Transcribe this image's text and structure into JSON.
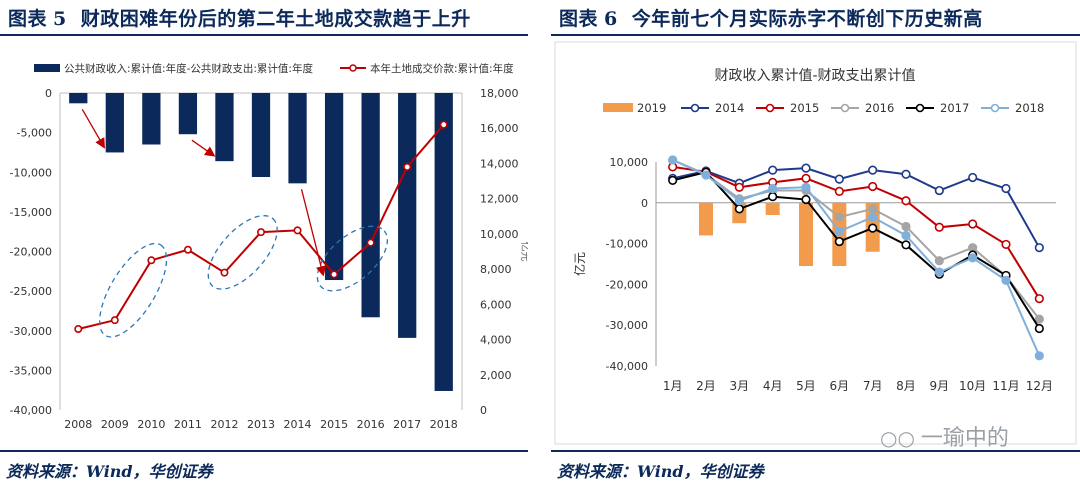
{
  "colors": {
    "navy": "#0b2a5b",
    "land_line": "#c00000",
    "annotation": "#2e75b6",
    "orange_bar": "#f39b4c",
    "s2014": "#1f3a8a",
    "s2015": "#c00000",
    "s2016": "#a5a5a5",
    "s2017": "#000000",
    "s2018": "#7fb0dc"
  },
  "left": {
    "figure_label": "图表",
    "figure_number": "5",
    "title": "财政困难年份后的第二年土地成交款趋于上升",
    "source": "资料来源：Wind，华创证券"
  },
  "right": {
    "figure_label": "图表",
    "figure_number": "6",
    "title": "今年前七个月实际赤字不断创下历史新高",
    "source": "资料来源：Wind，华创证券",
    "watermark": "一瑜中的",
    "watermark_icon": "wechat-icon"
  },
  "chart_data": [
    {
      "type": "bar+line",
      "title": "",
      "categories": [
        "2008",
        "2009",
        "2010",
        "2011",
        "2012",
        "2013",
        "2014",
        "2015",
        "2016",
        "2017",
        "2018"
      ],
      "series": [
        {
          "name": "公共财政收入:累计值:年度-公共财政支出:累计值:年度",
          "kind": "bar",
          "axis": "left",
          "values": [
            -1300,
            -7500,
            -6500,
            -5200,
            -8600,
            -10600,
            -11400,
            -23600,
            -28300,
            -30900,
            -37600
          ]
        },
        {
          "name": "本年土地成交价款:累计值:年度",
          "kind": "line",
          "axis": "right",
          "values": [
            4600,
            5100,
            8500,
            9100,
            7800,
            10100,
            10200,
            7700,
            9500,
            13800,
            16200
          ]
        }
      ],
      "y_left": {
        "min": -40000,
        "max": 0,
        "step": 5000,
        "ticks": [
          "0",
          "-5,000",
          "-10,000",
          "-15,000",
          "-20,000",
          "-25,000",
          "-30,000",
          "-35,000",
          "-40,000"
        ]
      },
      "y_right": {
        "min": 0,
        "max": 18000,
        "step": 2000,
        "label": "亿元",
        "ticks": [
          "0",
          "2,000",
          "4,000",
          "6,000",
          "8,000",
          "10,000",
          "12,000",
          "14,000",
          "16,000",
          "18,000"
        ]
      },
      "annotations": {
        "ellipses_around": [
          [
            "2009",
            "2010"
          ],
          [
            "2012",
            "2013"
          ],
          [
            "2015",
            "2016"
          ]
        ],
        "arrows_from_to": [
          [
            "2008",
            "2009"
          ],
          [
            "2011",
            "2012"
          ],
          [
            "2014",
            "2015"
          ]
        ]
      },
      "legend_position": "top"
    },
    {
      "type": "line+bar",
      "title": "财政收入累计值-财政支出累计值",
      "categories": [
        "1月",
        "2月",
        "3月",
        "4月",
        "5月",
        "6月",
        "7月",
        "8月",
        "9月",
        "10月",
        "11月",
        "12月"
      ],
      "ylabel": "亿元",
      "ylim": [
        -40000,
        10000
      ],
      "y_ticks": [
        "10,000",
        "0",
        "-10,000",
        "-20,000",
        "-30,000",
        "-40,000"
      ],
      "series": [
        {
          "name": "2019",
          "kind": "bar",
          "values": [
            null,
            -8000,
            -5000,
            -3000,
            -15500,
            -15500,
            -12000,
            null,
            null,
            null,
            null,
            null
          ]
        },
        {
          "name": "2014",
          "kind": "line",
          "values": [
            6000,
            7800,
            4800,
            8000,
            8500,
            5800,
            8000,
            7000,
            3000,
            6200,
            3500,
            -11000
          ]
        },
        {
          "name": "2015",
          "kind": "line",
          "values": [
            8800,
            7600,
            3800,
            5000,
            6000,
            2800,
            4000,
            500,
            -6000,
            -5200,
            -10200,
            -23500
          ]
        },
        {
          "name": "2016",
          "kind": "line",
          "values": [
            10500,
            7000,
            1000,
            3000,
            3000,
            -3500,
            -1500,
            -5800,
            -14200,
            -11000,
            -18000,
            -28500
          ]
        },
        {
          "name": "2017",
          "kind": "line",
          "values": [
            5500,
            7500,
            -1500,
            1500,
            800,
            -9500,
            -6200,
            -10300,
            -17500,
            -12800,
            -17800,
            -30800
          ]
        },
        {
          "name": "2018",
          "kind": "line",
          "values": [
            10500,
            6800,
            500,
            3500,
            3800,
            -7000,
            -3500,
            -8000,
            -17000,
            -13500,
            -19000,
            -37500
          ]
        }
      ],
      "legend_position": "top"
    }
  ]
}
